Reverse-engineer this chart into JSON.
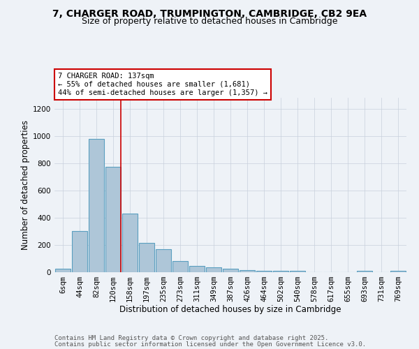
{
  "title": "7, CHARGER ROAD, TRUMPINGTON, CAMBRIDGE, CB2 9EA",
  "subtitle": "Size of property relative to detached houses in Cambridge",
  "xlabel": "Distribution of detached houses by size in Cambridge",
  "ylabel": "Number of detached properties",
  "categories": [
    "6sqm",
    "44sqm",
    "82sqm",
    "120sqm",
    "158sqm",
    "197sqm",
    "235sqm",
    "273sqm",
    "311sqm",
    "349sqm",
    "387sqm",
    "426sqm",
    "464sqm",
    "502sqm",
    "540sqm",
    "578sqm",
    "617sqm",
    "655sqm",
    "693sqm",
    "731sqm",
    "769sqm"
  ],
  "values": [
    25,
    300,
    980,
    775,
    430,
    215,
    170,
    80,
    48,
    35,
    25,
    15,
    8,
    8,
    8,
    0,
    0,
    0,
    8,
    0,
    8
  ],
  "bar_color": "#aec6d8",
  "bar_edge_color": "#5a9fc0",
  "red_line_x": 3.45,
  "red_line_color": "#cc0000",
  "annotation_title": "7 CHARGER ROAD: 137sqm",
  "annotation_line1": "← 55% of detached houses are smaller (1,681)",
  "annotation_line2": "44% of semi-detached houses are larger (1,357) →",
  "annotation_box_color": "#ffffff",
  "annotation_box_edgecolor": "#cc0000",
  "ylim": [
    0,
    1280
  ],
  "yticks": [
    0,
    200,
    400,
    600,
    800,
    1000,
    1200
  ],
  "footer1": "Contains HM Land Registry data © Crown copyright and database right 2025.",
  "footer2": "Contains public sector information licensed under the Open Government Licence v3.0.",
  "background_color": "#eef2f7",
  "title_fontsize": 10,
  "subtitle_fontsize": 9,
  "axis_label_fontsize": 8.5,
  "tick_fontsize": 7.5,
  "annotation_fontsize": 7.5,
  "footer_fontsize": 6.5
}
